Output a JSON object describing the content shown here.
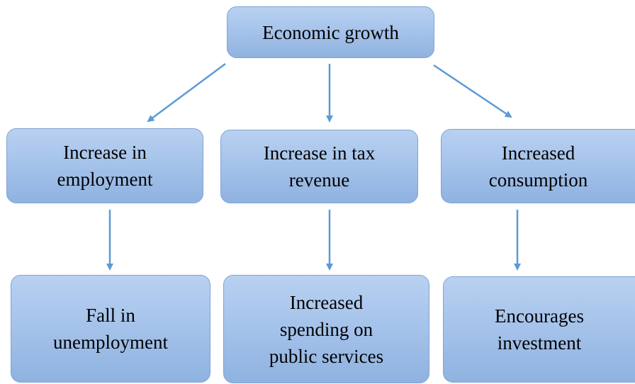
{
  "nodes": [
    {
      "lines": [
        "Economic growth"
      ]
    },
    {
      "lines": [
        "Increase in",
        "employment"
      ]
    },
    {
      "lines": [
        "Increase in tax",
        "revenue"
      ]
    },
    {
      "lines": [
        "Increased",
        "consumption"
      ]
    },
    {
      "lines": [
        "Fall in",
        "unemployment"
      ]
    },
    {
      "lines": [
        "Increased",
        "spending on",
        "public services"
      ]
    },
    {
      "lines": [
        "Encourages",
        "investment"
      ]
    }
  ]
}
